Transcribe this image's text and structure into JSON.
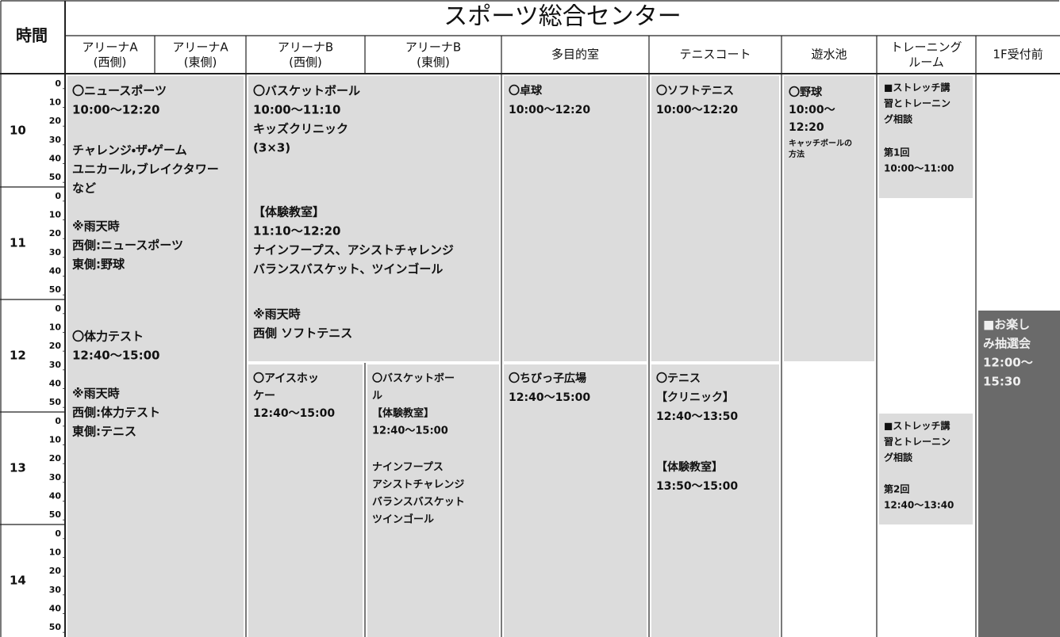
{
  "header": {
    "title": "スポーツ総合センター",
    "time_label": "時間"
  },
  "columns": [
    [
      "アリーナA",
      "(西側)"
    ],
    [
      "アリーナA",
      "(東側)"
    ],
    [
      "アリーナB",
      "(西側)"
    ],
    [
      "アリーナB",
      "(東側)"
    ],
    [
      "多目的室"
    ],
    [
      "テニスコート"
    ],
    [
      "遊水池"
    ],
    [
      "トレーニング",
      "ルーム"
    ],
    [
      "1F受付前"
    ]
  ],
  "time_axis": {
    "hours": [
      10,
      11,
      12,
      13,
      14
    ],
    "minutes": [
      0,
      10,
      20,
      30,
      40,
      50
    ]
  },
  "blocks": [
    [
      [
        "〇ニュースポーツ",
        "10:00〜12:20"
      ],
      [
        "チャレンジ・ザ・ゲーム",
        "ユニカール,ブレイクタワー",
        "など"
      ],
      [
        "※雨天時",
        "西側:ニュースポーツ",
        "東側:野球"
      ],
      [
        "〇体力テスト",
        "12:40〜15:00"
      ],
      [
        "※雨天時",
        "西側:体力テスト",
        "東側:テニス"
      ]
    ],
    [
      [
        "〇バスケットボール",
        "10:00〜11:10",
        "キッズクリニック",
        "(3×3)"
      ],
      [
        "【体験教室】",
        "11:10〜12:20",
        "ナインフープス、アシストチャレンジ",
        "バランスバスケット、ツインゴール"
      ],
      [
        "※雨天時",
        "西側 ソフトテニス"
      ]
    ],
    [
      [
        "〇アイスホッ",
        "ケー",
        "12:40〜15:00"
      ]
    ],
    [
      [
        "〇バスケットボー",
        "ル",
        "【体験教室】",
        "12:40〜15:00"
      ],
      [
        "ナインフープス",
        "アシストチャレンジ",
        "バランスバスケット",
        "ツインゴール"
      ]
    ],
    [
      [
        "〇卓球",
        "10:00〜12:20"
      ]
    ],
    [
      [
        "〇ちびっ子広場",
        "12:40〜15:00"
      ]
    ],
    [
      [
        "〇ソフトテニス",
        "10:00〜12:20"
      ]
    ],
    [
      [
        "〇テニス",
        "【クリニック】",
        "12:40〜13:50"
      ],
      [
        "【体験教室】",
        "13:50〜15:00"
      ]
    ],
    [
      [
        "〇野球",
        "10:00〜",
        "12:20"
      ],
      [
        "キャッチボールの",
        "方法"
      ]
    ],
    [
      [
        "■ストレッチ講",
        "習とトレーニン",
        "グ相談"
      ],
      [
        "第1回",
        "10:00〜11:00"
      ]
    ],
    [
      [
        "■ストレッチ講",
        "習とトレーニン",
        "グ相談"
      ],
      [
        "第2回",
        "12:40〜13:40"
      ]
    ],
    [
      [
        "■お楽し",
        "み抽選会",
        "12:00〜",
        "15:30"
      ]
    ]
  ]
}
